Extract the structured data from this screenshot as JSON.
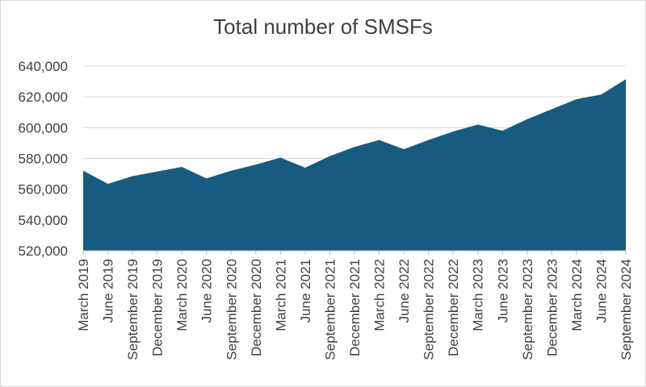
{
  "chart_data": {
    "type": "area",
    "title": "Total number of SMSFs",
    "xlabel": "",
    "ylabel": "",
    "categories": [
      "March 2019",
      "June 2019",
      "September 2019",
      "December 2019",
      "March 2020",
      "June 2020",
      "September 2020",
      "December 2020",
      "March 2021",
      "June 2021",
      "September 2021",
      "December 2021",
      "March 2022",
      "June 2022",
      "September 2022",
      "December 2022",
      "March 2023",
      "June 2023",
      "September 2023",
      "December 2023",
      "March 2024",
      "June 2024",
      "September 2024"
    ],
    "series": [
      {
        "values": [
          572000,
          563500,
          568500,
          571500,
          574500,
          567000,
          572000,
          576000,
          580500,
          574000,
          581500,
          587500,
          592000,
          586000,
          592000,
          597500,
          602000,
          598000,
          605500,
          612000,
          618500,
          621500,
          631500
        ]
      }
    ],
    "ylim": [
      520000,
      640000
    ],
    "yticks": [
      520000,
      540000,
      560000,
      580000,
      600000,
      620000,
      640000
    ],
    "ytick_labels": [
      "520,000",
      "540,000",
      "560,000",
      "580,000",
      "600,000",
      "620,000",
      "640,000"
    ],
    "grid": true,
    "legend": "none",
    "colors": {
      "area": "#175c80",
      "grid": "#d9d9d9",
      "text": "#404040"
    }
  }
}
